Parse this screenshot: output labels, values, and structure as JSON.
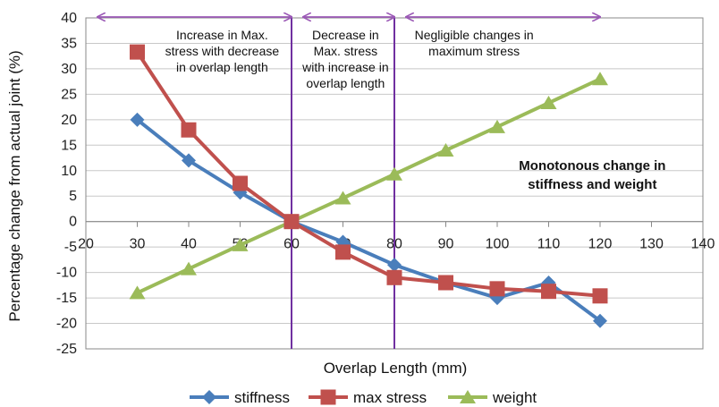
{
  "chart_data": {
    "type": "line",
    "xlabel": "Overlap Length (mm)",
    "ylabel": "Percentage change from actual joint (%)",
    "xlim": [
      20,
      140
    ],
    "ylim": [
      -25,
      40
    ],
    "x_ticks": [
      20,
      30,
      40,
      50,
      60,
      70,
      80,
      90,
      100,
      110,
      120,
      130,
      140
    ],
    "y_ticks": [
      40,
      35,
      30,
      25,
      20,
      15,
      10,
      5,
      0,
      -5,
      -10,
      -15,
      -20,
      -25
    ],
    "grid": "horizontal",
    "legend_position": "bottom",
    "x": [
      30,
      40,
      50,
      60,
      70,
      80,
      90,
      100,
      110,
      120
    ],
    "series": [
      {
        "name": "stiffness",
        "color": "#4a7ebb",
        "marker": "diamond",
        "values": [
          20,
          12,
          5.7,
          0,
          -4,
          -8.5,
          -12,
          -15,
          -12,
          -19.5
        ]
      },
      {
        "name": "max stress",
        "color": "#c0504d",
        "marker": "square",
        "values": [
          33.3,
          18,
          7.5,
          0,
          -6,
          -11,
          -12,
          -13.2,
          -13.7,
          -14.6
        ]
      },
      {
        "name": "weight",
        "color": "#9bbb59",
        "marker": "triangle",
        "values": [
          -14,
          -9.3,
          -4.6,
          0,
          4.6,
          9.3,
          14,
          18.6,
          23.3,
          28
        ]
      }
    ],
    "regions": [
      {
        "x_from": 20,
        "x_to": 60,
        "label_lines": [
          "Increase in Max.",
          "stress with decrease",
          "in overlap length"
        ]
      },
      {
        "x_from": 60,
        "x_to": 80,
        "label_lines": [
          "Decrease in",
          "Max. stress",
          "with increase in",
          "overlap length"
        ]
      },
      {
        "x_from": 80,
        "x_to": 120,
        "label_lines": [
          "Negligible changes in",
          "maximum stress"
        ]
      }
    ],
    "divider_x": [
      60,
      80
    ],
    "annotation_lines": [
      "Monotonous change in",
      "stiffness and weight"
    ],
    "colors": {
      "region_arrow": "#9b59b6",
      "divider": "#7030a0",
      "grid": "#c8c8c8",
      "axis": "#888888"
    }
  }
}
